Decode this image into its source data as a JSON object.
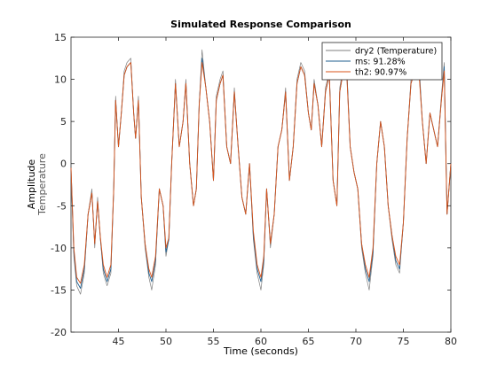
{
  "chart_data": {
    "type": "line",
    "title": "Simulated Response Comparison",
    "xlabel": "Time (seconds)",
    "ylabel": "Amplitude",
    "ylabel_sub": "Temperature",
    "xlim": [
      40,
      80
    ],
    "ylim": [
      -20,
      15
    ],
    "xticks": [
      45,
      50,
      55,
      60,
      65,
      70,
      75,
      80
    ],
    "yticks": [
      -20,
      -15,
      -10,
      -5,
      0,
      5,
      10,
      15
    ],
    "grid": false,
    "legend_position": "top-right",
    "series": [
      {
        "name": "dry2 (Temperature)",
        "color": "#7f7f7f",
        "x": [
          40.0,
          40.3,
          40.6,
          41.0,
          41.4,
          41.8,
          42.2,
          42.5,
          42.8,
          43.1,
          43.4,
          43.8,
          44.2,
          44.5,
          44.7,
          45.0,
          45.3,
          45.6,
          45.9,
          46.3,
          46.6,
          46.8,
          47.1,
          47.4,
          47.8,
          48.2,
          48.5,
          48.9,
          49.3,
          49.7,
          50.0,
          50.3,
          50.6,
          51.0,
          51.4,
          51.8,
          52.1,
          52.5,
          52.9,
          53.2,
          53.5,
          53.8,
          54.2,
          54.6,
          55.0,
          55.3,
          55.7,
          56.0,
          56.4,
          56.8,
          57.2,
          57.6,
          58.0,
          58.4,
          58.8,
          59.2,
          59.6,
          60.0,
          60.3,
          60.6,
          61.0,
          61.4,
          61.8,
          62.2,
          62.6,
          63.0,
          63.4,
          63.8,
          64.2,
          64.6,
          65.0,
          65.3,
          65.6,
          66.0,
          66.4,
          66.8,
          67.2,
          67.6,
          68.0,
          68.3,
          68.6,
          69.0,
          69.4,
          69.8,
          70.2,
          70.6,
          71.0,
          71.4,
          71.8,
          72.2,
          72.6,
          73.0,
          73.4,
          73.8,
          74.2,
          74.6,
          75.0,
          75.4,
          75.8,
          76.2,
          76.6,
          77.0,
          77.4,
          77.8,
          78.2,
          78.6,
          79.0,
          79.3,
          79.6,
          80.0
        ],
        "y": [
          -1,
          -11,
          -14.5,
          -15.5,
          -13,
          -6,
          -3,
          -10,
          -4,
          -9,
          -13,
          -14.5,
          -13,
          -3,
          8,
          2,
          6,
          11,
          12,
          12.5,
          6,
          3,
          8,
          -4,
          -10,
          -13.5,
          -15,
          -12,
          -3,
          -5,
          -11,
          -9,
          0,
          10,
          2,
          5,
          10,
          0,
          -5,
          -3,
          7,
          13.5,
          9,
          5,
          -2,
          8,
          10,
          11,
          2,
          0,
          9,
          2,
          -4,
          -6,
          0,
          -9,
          -13,
          -15,
          -12,
          -3,
          -10,
          -6,
          2,
          4,
          9,
          -2,
          2,
          10,
          12,
          11,
          6,
          4,
          10,
          7,
          2,
          9,
          11,
          -2,
          -5,
          9,
          11,
          12.5,
          2,
          -1,
          -3,
          -10,
          -13,
          -15,
          -11,
          0,
          5,
          2,
          -5,
          -9,
          -12,
          -13,
          -7,
          3,
          10,
          11.5,
          13,
          5,
          0,
          6,
          4,
          2,
          8,
          12,
          -6,
          0
        ]
      },
      {
        "name": "ms: 91.28%",
        "color": "#1f5f8f",
        "x": [
          40.0,
          40.3,
          40.6,
          41.0,
          41.4,
          41.8,
          42.2,
          42.5,
          42.8,
          43.1,
          43.4,
          43.8,
          44.2,
          44.5,
          44.7,
          45.0,
          45.3,
          45.6,
          45.9,
          46.3,
          46.6,
          46.8,
          47.1,
          47.4,
          47.8,
          48.2,
          48.5,
          48.9,
          49.3,
          49.7,
          50.0,
          50.3,
          50.6,
          51.0,
          51.4,
          51.8,
          52.1,
          52.5,
          52.9,
          53.2,
          53.5,
          53.8,
          54.2,
          54.6,
          55.0,
          55.3,
          55.7,
          56.0,
          56.4,
          56.8,
          57.2,
          57.6,
          58.0,
          58.4,
          58.8,
          59.2,
          59.6,
          60.0,
          60.3,
          60.6,
          61.0,
          61.4,
          61.8,
          62.2,
          62.6,
          63.0,
          63.4,
          63.8,
          64.2,
          64.6,
          65.0,
          65.3,
          65.6,
          66.0,
          66.4,
          66.8,
          67.2,
          67.6,
          68.0,
          68.3,
          68.6,
          69.0,
          69.4,
          69.8,
          70.2,
          70.6,
          71.0,
          71.4,
          71.8,
          72.2,
          72.6,
          73.0,
          73.4,
          73.8,
          74.2,
          74.6,
          75.0,
          75.4,
          75.8,
          76.2,
          76.6,
          77.0,
          77.4,
          77.8,
          78.2,
          78.6,
          79.0,
          79.3,
          79.6,
          80.0
        ],
        "y": [
          -0.5,
          -10.5,
          -14,
          -14.8,
          -12.5,
          -6,
          -3.5,
          -9.5,
          -4.5,
          -9,
          -12.5,
          -14,
          -12.5,
          -3,
          7.5,
          2,
          6,
          10.5,
          11.5,
          12,
          6,
          3,
          7.5,
          -4,
          -9.5,
          -13,
          -14,
          -11.5,
          -3,
          -5,
          -10.5,
          -9,
          0,
          9.5,
          2,
          5,
          9.5,
          0,
          -5,
          -3,
          7,
          12.5,
          9,
          5,
          -2,
          7.5,
          9.5,
          10.5,
          2,
          0,
          8.5,
          2,
          -4,
          -6,
          0,
          -8.5,
          -12.5,
          -14,
          -11.5,
          -3,
          -9.5,
          -6,
          2,
          4,
          8.5,
          -2,
          2,
          9.5,
          11.5,
          10.5,
          6,
          4,
          9.5,
          7,
          2,
          8.5,
          10.5,
          -2,
          -5,
          8.5,
          10.5,
          12,
          2,
          -1,
          -3,
          -9.5,
          -12.5,
          -14,
          -10.5,
          0,
          5,
          2,
          -5,
          -8.5,
          -11.5,
          -12.5,
          -7,
          3,
          9.5,
          11,
          12,
          5,
          0,
          6,
          4,
          2,
          7.5,
          11.5,
          -6,
          0
        ]
      },
      {
        "name": "th2: 90.97%",
        "color": "#d95319",
        "x": [
          40.0,
          40.3,
          40.6,
          41.0,
          41.4,
          41.8,
          42.2,
          42.5,
          42.8,
          43.1,
          43.4,
          43.8,
          44.2,
          44.5,
          44.7,
          45.0,
          45.3,
          45.6,
          45.9,
          46.3,
          46.6,
          46.8,
          47.1,
          47.4,
          47.8,
          48.2,
          48.5,
          48.9,
          49.3,
          49.7,
          50.0,
          50.3,
          50.6,
          51.0,
          51.4,
          51.8,
          52.1,
          52.5,
          52.9,
          53.2,
          53.5,
          53.8,
          54.2,
          54.6,
          55.0,
          55.3,
          55.7,
          56.0,
          56.4,
          56.8,
          57.2,
          57.6,
          58.0,
          58.4,
          58.8,
          59.2,
          59.6,
          60.0,
          60.3,
          60.6,
          61.0,
          61.4,
          61.8,
          62.2,
          62.6,
          63.0,
          63.4,
          63.8,
          64.2,
          64.6,
          65.0,
          65.3,
          65.6,
          66.0,
          66.4,
          66.8,
          67.2,
          67.6,
          68.0,
          68.3,
          68.6,
          69.0,
          69.4,
          69.8,
          70.2,
          70.6,
          71.0,
          71.4,
          71.8,
          72.2,
          72.6,
          73.0,
          73.4,
          73.8,
          74.2,
          74.6,
          75.0,
          75.4,
          75.8,
          76.2,
          76.6,
          77.0,
          77.4,
          77.8,
          78.2,
          78.6,
          79.0,
          79.3,
          79.6,
          80.0
        ],
        "y": [
          -0.5,
          -10,
          -13.5,
          -14.2,
          -12,
          -6,
          -3.5,
          -9.5,
          -4.5,
          -8.8,
          -12,
          -13.5,
          -12,
          -3,
          7.5,
          2,
          6,
          10.5,
          11.5,
          12,
          6,
          3,
          7.5,
          -4,
          -9.5,
          -12.5,
          -13.5,
          -11,
          -3,
          -5,
          -10,
          -8.8,
          0,
          9.5,
          2,
          5,
          9.5,
          0,
          -5,
          -3,
          7,
          12,
          9,
          5,
          -2,
          7.5,
          9.5,
          10.5,
          2,
          0,
          8.5,
          2,
          -4,
          -6,
          0,
          -8,
          -12,
          -13.5,
          -11,
          -3,
          -9.5,
          -6,
          2,
          4,
          8.5,
          -2,
          2,
          9.5,
          11.5,
          10.5,
          6,
          4,
          9.5,
          7,
          2,
          8.5,
          10.5,
          -2,
          -5,
          8.5,
          10.5,
          11.5,
          2,
          -1,
          -3,
          -9.5,
          -12,
          -13.5,
          -10,
          0,
          5,
          2,
          -5,
          -8.5,
          -11,
          -12,
          -7,
          3,
          9.5,
          11,
          11.5,
          5,
          0,
          6,
          4,
          2,
          7.5,
          11,
          -6,
          0
        ]
      }
    ]
  }
}
